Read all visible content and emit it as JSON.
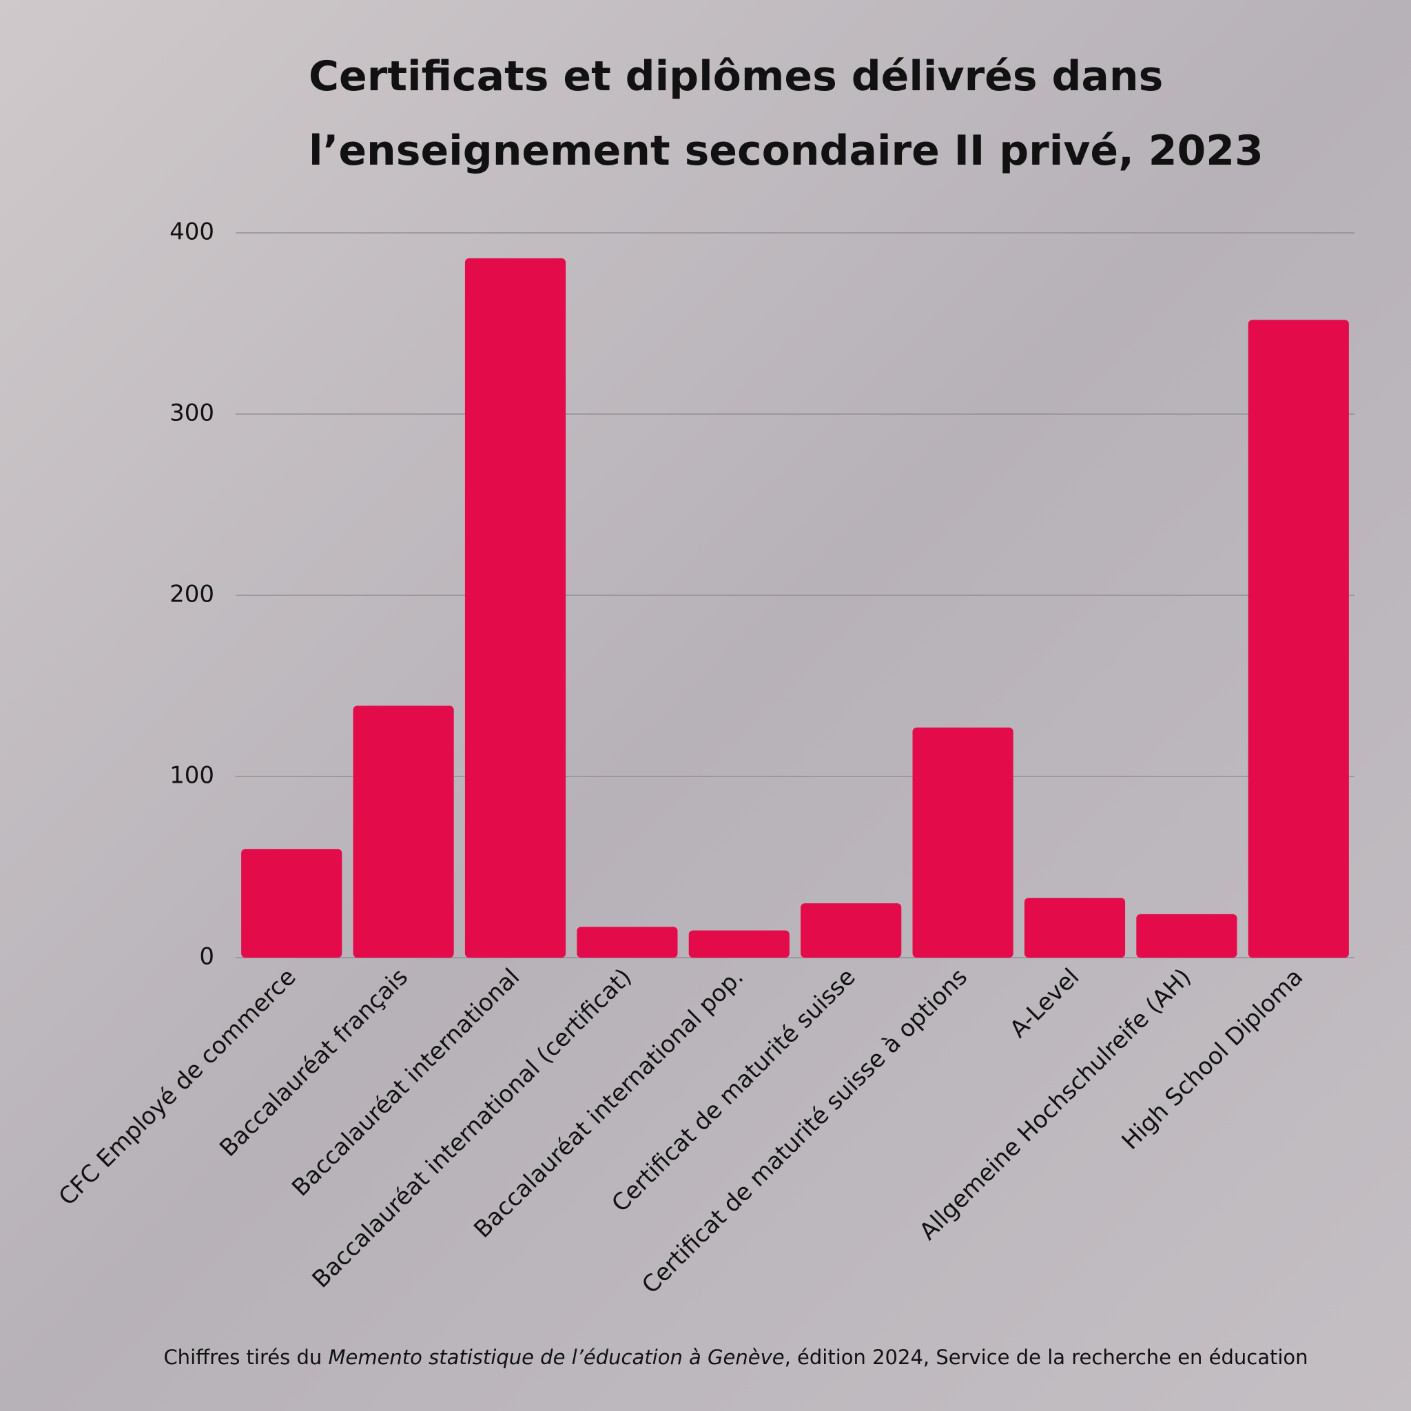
{
  "chart_data": {
    "type": "bar",
    "title": [
      "Certificats et diplômes délivrés dans",
      "l’enseignement secondaire II privé, 2023"
    ],
    "categories": [
      "CFC Employé de commerce",
      "Baccalauréat français",
      "Baccalauréat international",
      "Baccalauréat international (certificat)",
      "Baccalauréat international pop.",
      "Certificat de maturité suisse",
      "Certificat de maturité suisse à options",
      "A-Level",
      "Allgemeine Hochschulreife (AH)",
      "High School Diploma"
    ],
    "values": [
      60,
      139,
      386,
      17,
      15,
      30,
      127,
      33,
      24,
      352
    ],
    "color": "#e30b4a",
    "ylim": [
      0,
      400
    ],
    "yticks": [
      0,
      100,
      200,
      300,
      400
    ],
    "grid": true,
    "source": [
      "Chiffres tirés du ",
      "Memento statistique de l’éducation à Genève",
      ", édition 2024, Service de la recherche en éducation"
    ]
  }
}
